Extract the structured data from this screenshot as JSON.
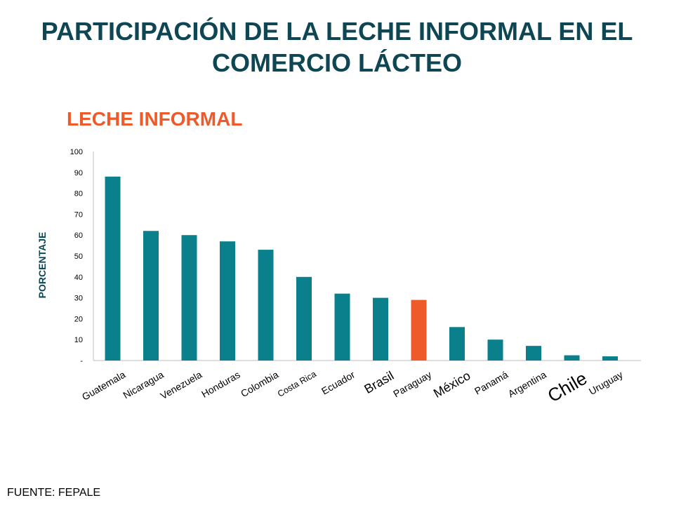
{
  "header": {
    "title_line1": "PARTICIPACIÓN DE LA LECHE INFORMAL EN EL",
    "title_line2": "COMERCIO LÁCTEO",
    "subtitle": "LECHE INFORMAL"
  },
  "footer": {
    "source": "FUENTE: FEPALE"
  },
  "colors": {
    "bar": "#0a808c",
    "highlight": "#ee5a2a",
    "title": "#0f4654",
    "subtitle": "#ee5a2a"
  },
  "chart_data": {
    "type": "bar",
    "ylabel": "PORCENTAJE",
    "ylim": [
      0,
      100
    ],
    "yticks": [
      0,
      10,
      20,
      30,
      40,
      50,
      60,
      70,
      80,
      90,
      100
    ],
    "ytick_labels": [
      "-",
      "10",
      "20",
      "30",
      "40",
      "50",
      "60",
      "70",
      "80",
      "90",
      "100"
    ],
    "categories": [
      "Guatemala",
      "Nicaragua",
      "Venezuela",
      "Honduras",
      "Colombia",
      "Costa Rica",
      "Ecuador",
      "Brasil",
      "Paraguay",
      "México",
      "Panamá",
      "Argentina",
      "Chile",
      "Uruguay"
    ],
    "values": [
      88,
      62,
      60,
      57,
      53,
      40,
      32,
      30,
      29,
      16,
      10,
      7,
      2.5,
      2
    ],
    "highlight_category": "Paraguay",
    "emphasized_labels": [
      "Brasil",
      "México",
      "Chile"
    ],
    "grid": false,
    "legend": "none"
  }
}
